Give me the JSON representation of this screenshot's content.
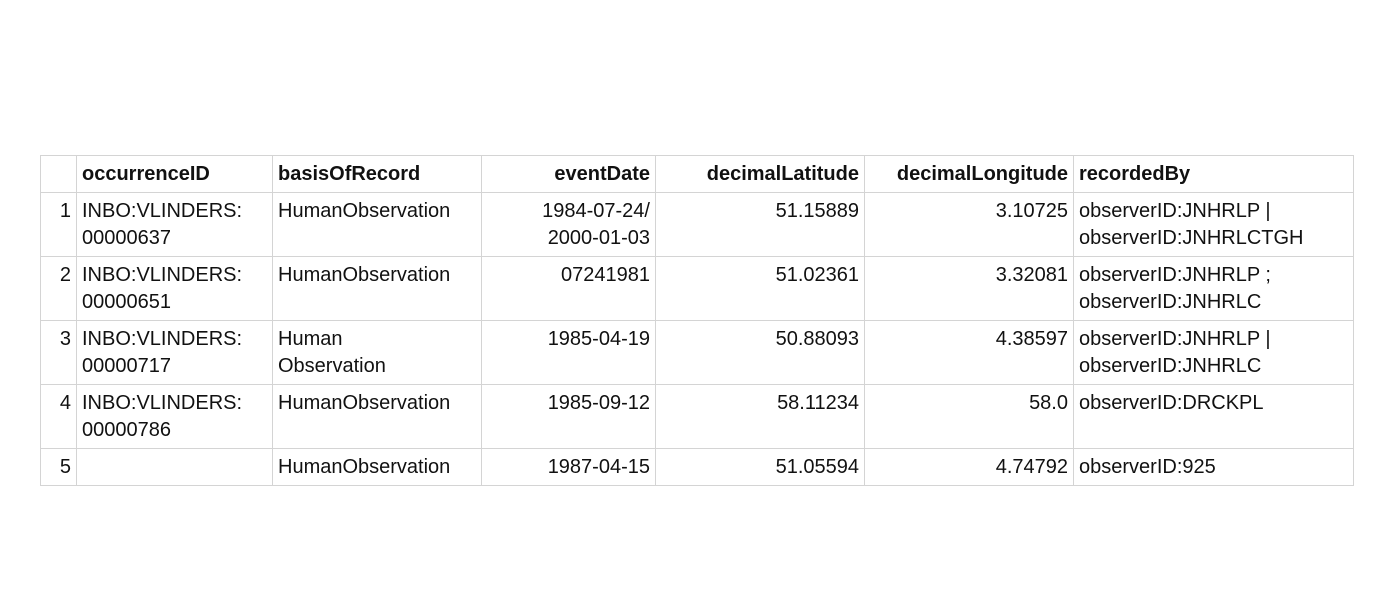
{
  "table": {
    "columns": [
      "",
      "occurrenceID",
      "basisOfRecord",
      "eventDate",
      "decimalLatitude",
      "decimalLongitude",
      "recordedBy"
    ],
    "rows": [
      {
        "index": "1",
        "occurrenceID": [
          "INBO:VLINDERS:",
          "00000637"
        ],
        "basisOfRecord": [
          "HumanObservation"
        ],
        "eventDate": [
          "1984-07-24/",
          "2000-01-03"
        ],
        "decimalLatitude": "51.15889",
        "decimalLongitude": "3.10725",
        "recordedBy": [
          "observerID:JNHRLP |",
          "observerID:JNHRLCTGH"
        ]
      },
      {
        "index": "2",
        "occurrenceID": [
          "INBO:VLINDERS:",
          "00000651"
        ],
        "basisOfRecord": [
          "HumanObservation"
        ],
        "eventDate": [
          "07241981"
        ],
        "decimalLatitude": "51.02361",
        "decimalLongitude": "3.32081",
        "recordedBy": [
          "observerID:JNHRLP ;",
          "observerID:JNHRLC"
        ]
      },
      {
        "index": "3",
        "occurrenceID": [
          "INBO:VLINDERS:",
          "00000717"
        ],
        "basisOfRecord": [
          "Human",
          "Observation"
        ],
        "eventDate": [
          "1985-04-19"
        ],
        "decimalLatitude": "50.88093",
        "decimalLongitude": "4.38597",
        "recordedBy": [
          "observerID:JNHRLP |",
          "observerID:JNHRLC"
        ]
      },
      {
        "index": "4",
        "occurrenceID": [
          "INBO:VLINDERS:",
          "00000786"
        ],
        "basisOfRecord": [
          "HumanObservation"
        ],
        "eventDate": [
          "1985-09-12"
        ],
        "decimalLatitude": "58.11234",
        "decimalLongitude": "58.0",
        "recordedBy": [
          "observerID:DRCKPL"
        ]
      },
      {
        "index": "5",
        "occurrenceID": [],
        "basisOfRecord": [
          "HumanObservation"
        ],
        "eventDate": [
          "1987-04-15"
        ],
        "decimalLatitude": "51.05594",
        "decimalLongitude": "4.74792",
        "recordedBy": [
          "observerID:925"
        ]
      }
    ]
  }
}
